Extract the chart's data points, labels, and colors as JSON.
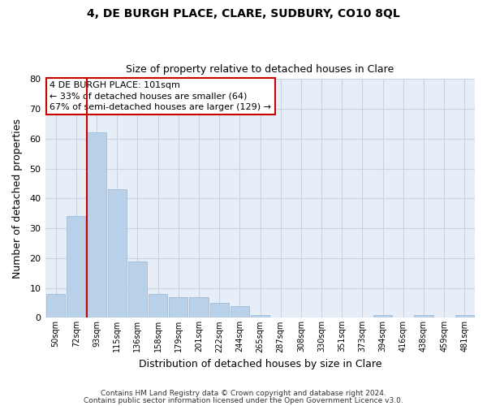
{
  "title": "4, DE BURGH PLACE, CLARE, SUDBURY, CO10 8QL",
  "subtitle": "Size of property relative to detached houses in Clare",
  "xlabel": "Distribution of detached houses by size in Clare",
  "ylabel": "Number of detached properties",
  "bar_color": "#b8d0e8",
  "bar_edge_color": "#9fbcd6",
  "categories": [
    "50sqm",
    "72sqm",
    "93sqm",
    "115sqm",
    "136sqm",
    "158sqm",
    "179sqm",
    "201sqm",
    "222sqm",
    "244sqm",
    "265sqm",
    "287sqm",
    "308sqm",
    "330sqm",
    "351sqm",
    "373sqm",
    "394sqm",
    "416sqm",
    "438sqm",
    "459sqm",
    "481sqm"
  ],
  "values": [
    8,
    34,
    62,
    43,
    19,
    8,
    7,
    7,
    5,
    4,
    1,
    0,
    0,
    0,
    0,
    0,
    1,
    0,
    1,
    0,
    1
  ],
  "ylim": [
    0,
    80
  ],
  "yticks": [
    0,
    10,
    20,
    30,
    40,
    50,
    60,
    70,
    80
  ],
  "property_line_color": "#cc0000",
  "property_bar_index": 2,
  "annotation_text": "4 DE BURGH PLACE: 101sqm\n← 33% of detached houses are smaller (64)\n67% of semi-detached houses are larger (129) →",
  "annotation_box_color": "#ffffff",
  "annotation_box_edge": "#cc0000",
  "footer1": "Contains HM Land Registry data © Crown copyright and database right 2024.",
  "footer2": "Contains public sector information licensed under the Open Government Licence v3.0.",
  "background_color": "#ffffff",
  "plot_bg_color": "#e8eef8",
  "grid_color": "#c8d4e4"
}
